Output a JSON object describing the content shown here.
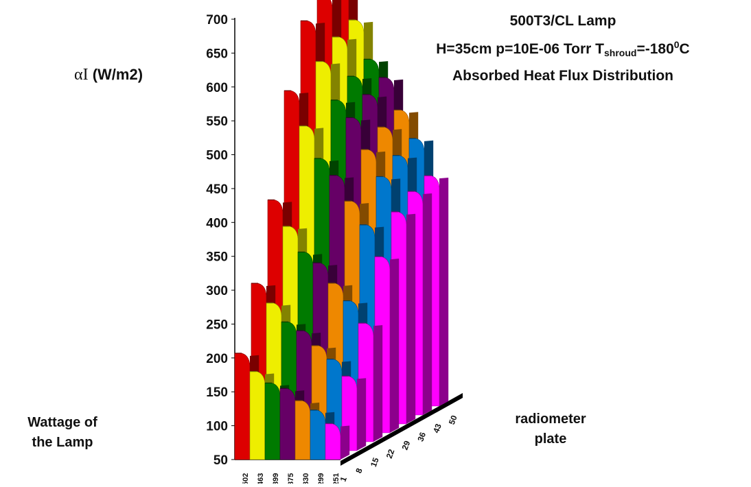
{
  "title": {
    "line1": "500T3/CL Lamp",
    "line2_prefix": "H=35cm p=10E-06 Torr T",
    "line2_sub": "shroud",
    "line2_mid": "=-180",
    "line2_sup": "0",
    "line2_suffix": "C",
    "line3": "Absorbed Heat  Flux Distribution"
  },
  "labels": {
    "y_symbol": "αI",
    "y_unit": "(W/m2)",
    "x_line1": "Wattage of",
    "x_line2": "the Lamp",
    "z_line1": "radiometer",
    "z_line2": "plate"
  },
  "chart_data": {
    "type": "bar",
    "subtype": "3d-ribbon",
    "title": "500T3/CL Lamp H=35cm p=10E-06 Torr Tshroud=-180°C Absorbed Heat Flux Distribution",
    "ylabel": "αI (W/m2)",
    "xlabel": "Wattage of the Lamp",
    "zlabel": "radiometer plate",
    "ylim": [
      50,
      700
    ],
    "yticks": [
      50,
      100,
      150,
      200,
      250,
      300,
      350,
      400,
      450,
      500,
      550,
      600,
      650,
      700
    ],
    "wattage_categories": [
      "502",
      "463",
      "399",
      "375",
      "330",
      "299",
      "251"
    ],
    "plate_ticks": [
      "1",
      "8",
      "15",
      "22",
      "29",
      "36",
      "43",
      "50"
    ],
    "series_colors": [
      "#dd0000",
      "#eeee00",
      "#007a00",
      "#660066",
      "#ee8800",
      "#0077cc",
      "#ff00ff"
    ],
    "series": [
      {
        "name": "502",
        "peaks": [
          207,
          297,
          407,
          555,
          645,
          670,
          682
        ]
      },
      {
        "name": "463",
        "peaks": [
          180,
          268,
          368,
          503,
          585,
          608,
          620
        ]
      },
      {
        "name": "399",
        "peaks": [
          163,
          240,
          330,
          455,
          528,
          550,
          562
        ]
      },
      {
        "name": "375",
        "peaks": [
          155,
          227,
          314,
          430,
          502,
          523,
          535
        ]
      },
      {
        "name": "330",
        "peaks": [
          137,
          205,
          284,
          392,
          455,
          475,
          487
        ]
      },
      {
        "name": "299",
        "peaks": [
          123,
          185,
          258,
          357,
          415,
          433,
          445
        ]
      },
      {
        "name": "251",
        "peaks": [
          103,
          160,
          225,
          310,
          363,
          380,
          390
        ]
      }
    ],
    "grid": false,
    "legend": "none"
  }
}
